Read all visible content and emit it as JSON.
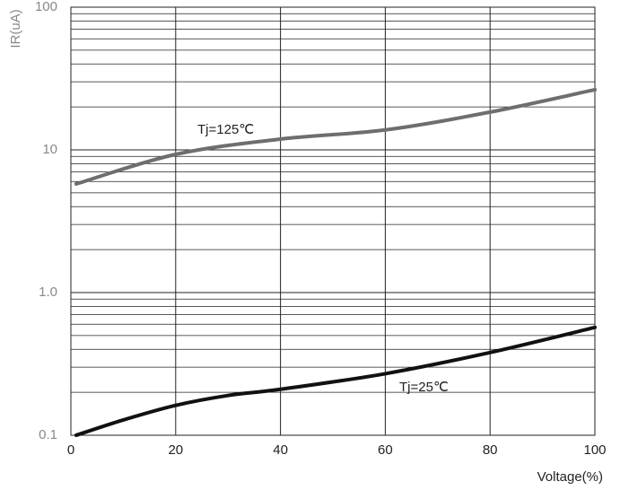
{
  "chart_data": {
    "type": "line",
    "y_label": "IR(uA)",
    "x_label": "Voltage(%)",
    "log_y": true,
    "grid": true,
    "minor_grid": true,
    "xlim": [
      0,
      100
    ],
    "xticks": [
      0,
      20,
      40,
      60,
      80,
      100
    ],
    "ylim": [
      0.1,
      100
    ],
    "yticks": [
      0.1,
      {
        "value": 1,
        "label": "1.0"
      },
      10,
      100
    ],
    "series": [
      {
        "name": "Tj=125℃",
        "color": "#6e6e6e",
        "x": [
          1,
          20,
          40,
          60,
          80,
          100
        ],
        "values": [
          5.77,
          9.3,
          11.9,
          13.8,
          18.4,
          26.4
        ]
      },
      {
        "name": "Tj=25℃",
        "color": "#111111",
        "x": [
          1,
          10,
          20,
          30,
          40,
          60,
          80,
          100
        ],
        "values": [
          0.1,
          0.128,
          0.162,
          0.19,
          0.21,
          0.27,
          0.38,
          0.57
        ]
      }
    ]
  }
}
